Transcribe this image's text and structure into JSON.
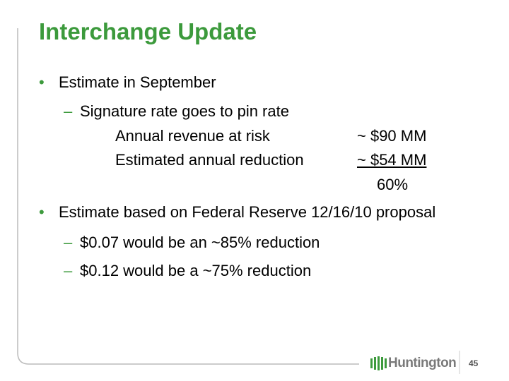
{
  "title": "Interchange Update",
  "bullets": [
    {
      "text": "Estimate in September",
      "sub": [
        {
          "text": "Signature rate goes to pin rate",
          "rows": [
            {
              "label": "Annual revenue at risk",
              "value": "~ $90 MM"
            },
            {
              "label": "Estimated annual reduction",
              "value": "~ $54 MM"
            }
          ],
          "result": "60%"
        }
      ]
    },
    {
      "text": "Estimate based on Federal Reserve 12/16/10 proposal",
      "sub": [
        {
          "text": "$0.07 would be an ~85% reduction"
        },
        {
          "text": "$0.12 would be a ~75% reduction"
        }
      ]
    }
  ],
  "footer": {
    "logo": "Huntington",
    "page_number": "45"
  }
}
